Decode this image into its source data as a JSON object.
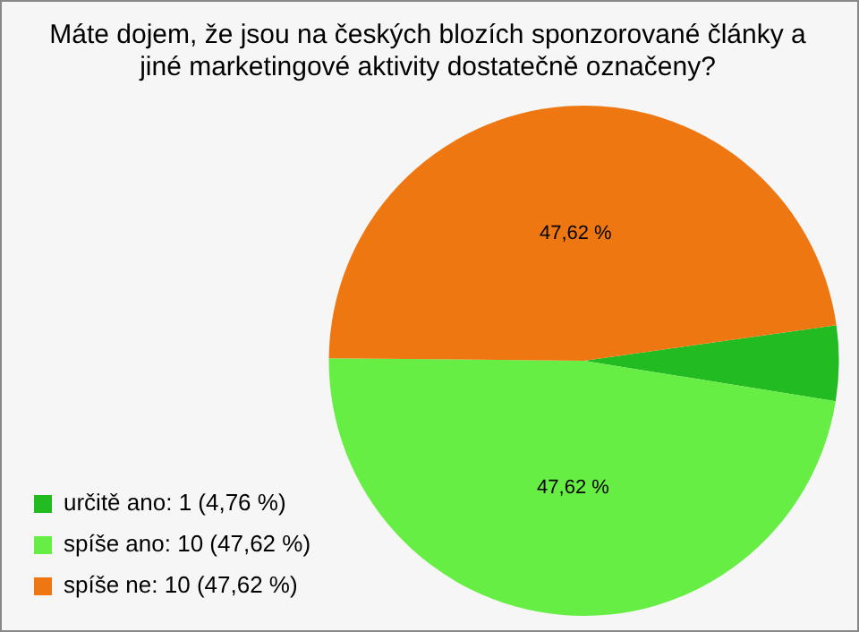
{
  "chart_data": {
    "type": "pie",
    "title": "Máte dojem, že jsou na českých blozích sponzorované články a jiné marketingové aktivity dostatečně označeny?",
    "categories": [
      "určitě ano: 1 (4,76 %)",
      "spíše ano: 10 (47,62 %)",
      "spíše ne: 10 (47,62 %)"
    ],
    "values": [
      4.76,
      47.62,
      47.62
    ],
    "colors": [
      "#22bb22",
      "#66ee44",
      "#ee7711"
    ],
    "value_labels": [
      null,
      "47,62 %",
      "47,62 %"
    ],
    "legend": "bottom left"
  }
}
